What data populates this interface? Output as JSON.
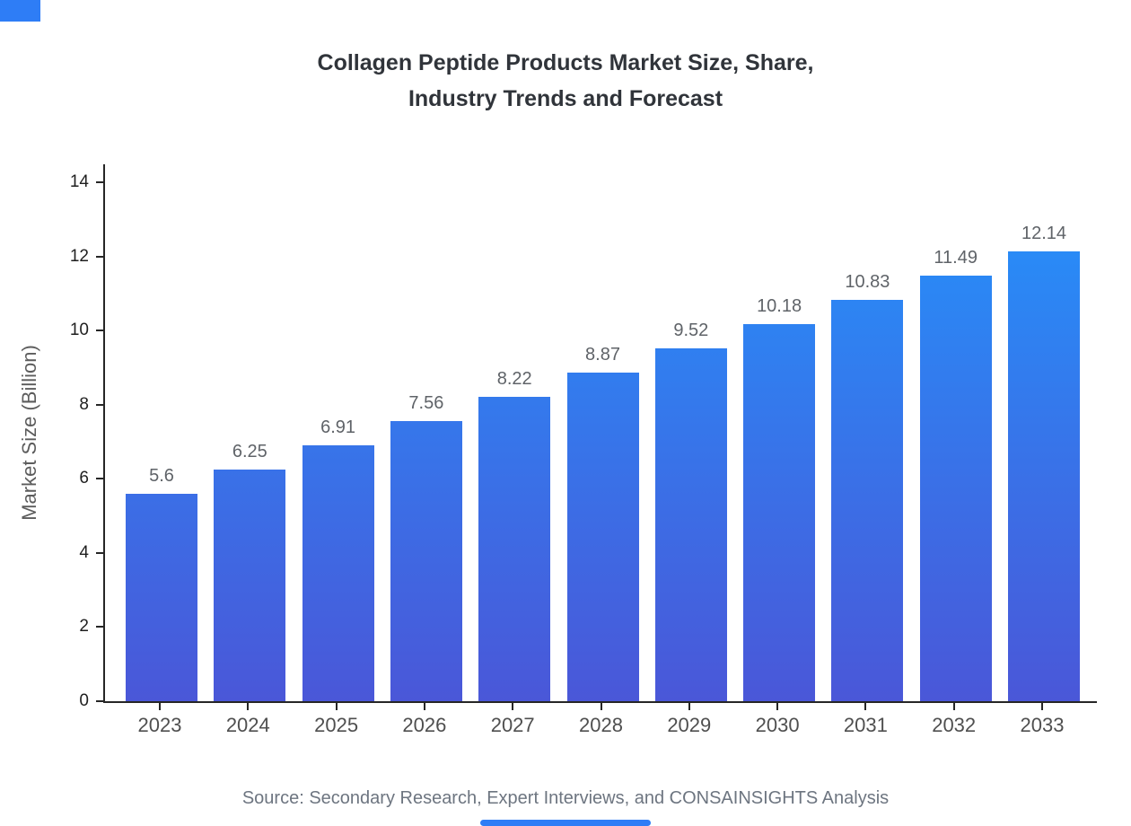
{
  "page": {
    "title_line1": "Collagen Peptide Products Market Size, Share,",
    "title_line2": "Industry Trends and Forecast",
    "source": "Source: Secondary Research, Expert Interviews, and CONSAINSIGHTS Analysis"
  },
  "chart_data": {
    "type": "bar",
    "title": "Collagen Peptide Products Market Size, Share, Industry Trends and Forecast",
    "categories": [
      "2023",
      "2024",
      "2025",
      "2026",
      "2027",
      "2028",
      "2029",
      "2030",
      "2031",
      "2032",
      "2033"
    ],
    "values": [
      5.6,
      6.25,
      6.91,
      7.56,
      8.22,
      8.87,
      9.52,
      10.18,
      10.83,
      11.49,
      12.14
    ],
    "xlabel": "",
    "ylabel": "Market Size (Billion)",
    "ylim": [
      0,
      14
    ],
    "yticks": [
      0,
      2,
      4,
      6,
      8,
      10,
      12,
      14
    ],
    "grid": false,
    "legend": "none",
    "data_labels": true,
    "colors": {
      "bar_top": "#2492fb",
      "bar_bottom": "#4a57d8",
      "title": "#30343a",
      "axis": "#262626",
      "y_tick": "#1f1f1f",
      "x_tick": "#4f4f4f",
      "value_label": "#5f6368",
      "axis_label": "#5c5c5c",
      "source": "#6d7580",
      "accent": "#2e7df6"
    }
  }
}
